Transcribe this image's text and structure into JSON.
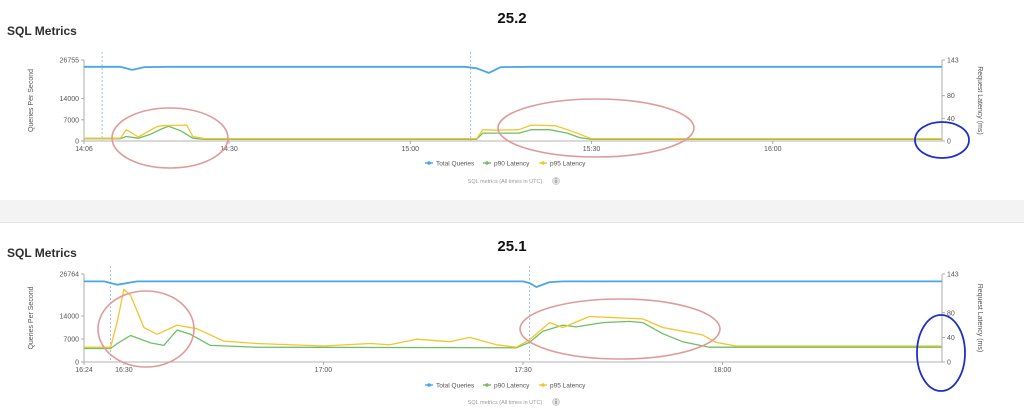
{
  "chart_data": [
    {
      "type": "line",
      "title": "SQL Metrics",
      "version": "25.2",
      "ylabel": "Queries Per Second",
      "y2label": "Request Latency (ms)",
      "ylim": [
        0,
        26755
      ],
      "y_ticks": [
        {
          "value": 0,
          "label": "0"
        },
        {
          "value": 7000,
          "label": "7000"
        },
        {
          "value": 14000,
          "label": "14000"
        },
        {
          "value": 26755,
          "label": "26755"
        }
      ],
      "y2lim": [
        0,
        143
      ],
      "y2_ticks": [
        {
          "value": 0,
          "label": "0"
        },
        {
          "value": 40,
          "label": "40"
        },
        {
          "value": 80,
          "label": "80"
        },
        {
          "value": 143,
          "label": "143"
        }
      ],
      "xlim": [
        "14:06",
        "16:28"
      ],
      "x_ticks": [
        {
          "t": "14:06",
          "label": "14:06"
        },
        {
          "t": "14:30",
          "label": "14:30"
        },
        {
          "t": "15:00",
          "label": "15:00"
        },
        {
          "t": "15:30",
          "label": "15:30"
        },
        {
          "t": "16:00",
          "label": "16:00"
        }
      ],
      "markers": [
        "14:09",
        "15:10"
      ],
      "legend": "bottom",
      "legend_entries": [
        "Total Queries",
        "p90 Latency",
        "p95 Latency"
      ],
      "caption": "SQL metrics (All times in UTC)",
      "series": [
        {
          "name": "Total Queries",
          "axis": "left",
          "color": "#4aa6e8",
          "points": [
            [
              "14:06",
              24500
            ],
            [
              "14:12",
              24500
            ],
            [
              "14:14",
              23500
            ],
            [
              "14:16",
              24400
            ],
            [
              "14:20",
              24500
            ],
            [
              "15:09",
              24500
            ],
            [
              "15:11",
              24000
            ],
            [
              "15:13",
              22500
            ],
            [
              "15:15",
              24400
            ],
            [
              "15:20",
              24500
            ],
            [
              "16:28",
              24500
            ]
          ]
        },
        {
          "name": "p90 Latency",
          "axis": "right",
          "color": "#6cc060",
          "points": [
            [
              "14:06",
              4
            ],
            [
              "14:12",
              4
            ],
            [
              "14:13",
              8
            ],
            [
              "14:15",
              5
            ],
            [
              "14:17",
              12
            ],
            [
              "14:19",
              22
            ],
            [
              "14:20",
              26
            ],
            [
              "14:22",
              18
            ],
            [
              "14:24",
              5
            ],
            [
              "14:26",
              3
            ],
            [
              "15:11",
              3
            ],
            [
              "15:12",
              14
            ],
            [
              "15:14",
              14
            ],
            [
              "15:18",
              14
            ],
            [
              "15:20",
              20
            ],
            [
              "15:23",
              20
            ],
            [
              "15:26",
              14
            ],
            [
              "15:28",
              6
            ],
            [
              "15:30",
              3
            ],
            [
              "16:28",
              3
            ]
          ]
        },
        {
          "name": "p95 Latency",
          "axis": "right",
          "color": "#f4c430",
          "points": [
            [
              "14:06",
              5
            ],
            [
              "14:12",
              5
            ],
            [
              "14:13",
              20
            ],
            [
              "14:15",
              7
            ],
            [
              "14:18",
              25
            ],
            [
              "14:19",
              27
            ],
            [
              "14:23",
              28
            ],
            [
              "14:24",
              8
            ],
            [
              "14:26",
              4
            ],
            [
              "15:11",
              4
            ],
            [
              "15:12",
              20
            ],
            [
              "15:14",
              19
            ],
            [
              "15:18",
              20
            ],
            [
              "15:20",
              28
            ],
            [
              "15:24",
              27
            ],
            [
              "15:26",
              20
            ],
            [
              "15:28",
              12
            ],
            [
              "15:30",
              4
            ],
            [
              "16:28",
              4
            ]
          ]
        }
      ]
    },
    {
      "type": "line",
      "title": "SQL Metrics",
      "version": "25.1",
      "ylabel": "Queries Per Second",
      "y2label": "Request Latency (ms)",
      "ylim": [
        0,
        26764
      ],
      "y_ticks": [
        {
          "value": 0,
          "label": "0"
        },
        {
          "value": 7000,
          "label": "7000"
        },
        {
          "value": 14000,
          "label": "14000"
        },
        {
          "value": 26764,
          "label": "26764"
        }
      ],
      "y2lim": [
        0,
        143
      ],
      "y2_ticks": [
        {
          "value": 0,
          "label": "0"
        },
        {
          "value": 40,
          "label": "40"
        },
        {
          "value": 80,
          "label": "80"
        },
        {
          "value": 143,
          "label": "143"
        }
      ],
      "xlim": [
        "16:24",
        "18:33"
      ],
      "x_ticks": [
        {
          "t": "16:24",
          "label": "16:24"
        },
        {
          "t": "16:30",
          "label": "16:30"
        },
        {
          "t": "17:00",
          "label": "17:00"
        },
        {
          "t": "17:30",
          "label": "17:30"
        },
        {
          "t": "18:00",
          "label": "18:00"
        }
      ],
      "markers": [
        "16:28",
        "17:31"
      ],
      "legend": "bottom",
      "legend_entries": [
        "Total Queries",
        "p90 Latency",
        "p95 Latency"
      ],
      "caption": "SQL metrics (All times in UTC)",
      "series": [
        {
          "name": "Total Queries",
          "axis": "left",
          "color": "#4aa6e8",
          "points": [
            [
              "16:24",
              24500
            ],
            [
              "16:27",
              24500
            ],
            [
              "16:29",
              23500
            ],
            [
              "16:32",
              24500
            ],
            [
              "17:30",
              24500
            ],
            [
              "17:31",
              24000
            ],
            [
              "17:32",
              22800
            ],
            [
              "17:34",
              24300
            ],
            [
              "17:36",
              24500
            ],
            [
              "18:33",
              24500
            ]
          ]
        },
        {
          "name": "p90 Latency",
          "axis": "right",
          "color": "#6cc060",
          "points": [
            [
              "16:24",
              22
            ],
            [
              "16:28",
              22
            ],
            [
              "16:29",
              30
            ],
            [
              "16:31",
              43
            ],
            [
              "16:34",
              31
            ],
            [
              "16:36",
              27
            ],
            [
              "16:38",
              52
            ],
            [
              "16:40",
              45
            ],
            [
              "16:43",
              27
            ],
            [
              "16:50",
              24
            ],
            [
              "17:29",
              23
            ],
            [
              "17:31",
              32
            ],
            [
              "17:33",
              50
            ],
            [
              "17:36",
              60
            ],
            [
              "17:38",
              57
            ],
            [
              "17:42",
              64
            ],
            [
              "17:46",
              66
            ],
            [
              "17:48",
              64
            ],
            [
              "17:51",
              46
            ],
            [
              "17:54",
              33
            ],
            [
              "17:58",
              24
            ],
            [
              "18:33",
              24
            ]
          ]
        },
        {
          "name": "p95 Latency",
          "axis": "right",
          "color": "#f4c430",
          "points": [
            [
              "16:24",
              24
            ],
            [
              "16:28",
              24
            ],
            [
              "16:29",
              66
            ],
            [
              "16:30",
              118
            ],
            [
              "16:31",
              108
            ],
            [
              "16:33",
              56
            ],
            [
              "16:35",
              45
            ],
            [
              "16:38",
              60
            ],
            [
              "16:41",
              54
            ],
            [
              "16:45",
              34
            ],
            [
              "16:50",
              30
            ],
            [
              "17:00",
              26
            ],
            [
              "17:07",
              30
            ],
            [
              "17:10",
              28
            ],
            [
              "17:14",
              37
            ],
            [
              "17:19",
              33
            ],
            [
              "17:22",
              40
            ],
            [
              "17:26",
              28
            ],
            [
              "17:29",
              24
            ],
            [
              "17:31",
              36
            ],
            [
              "17:34",
              64
            ],
            [
              "17:36",
              56
            ],
            [
              "17:40",
              74
            ],
            [
              "17:44",
              72
            ],
            [
              "17:48",
              70
            ],
            [
              "17:51",
              56
            ],
            [
              "17:54",
              50
            ],
            [
              "17:57",
              44
            ],
            [
              "17:59",
              32
            ],
            [
              "18:02",
              26
            ],
            [
              "18:33",
              26
            ]
          ]
        }
      ]
    }
  ]
}
